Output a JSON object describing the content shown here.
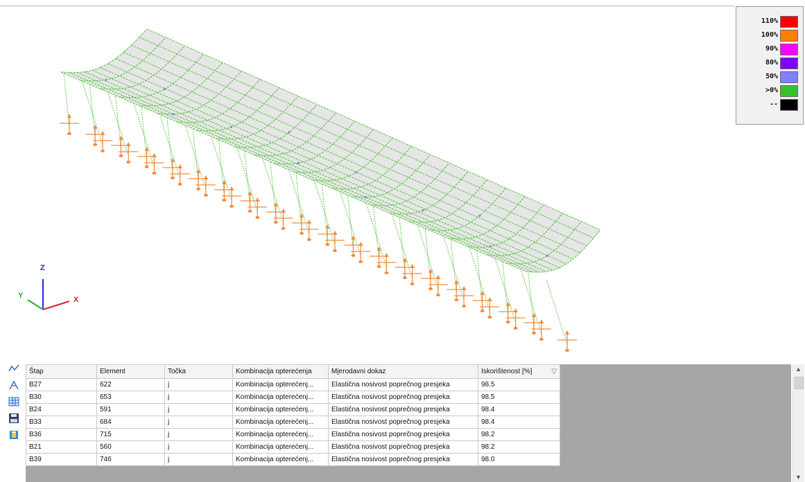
{
  "legend": {
    "entries": [
      {
        "label": "110%",
        "color": "#ff0000"
      },
      {
        "label": "100%",
        "color": "#ff7f00"
      },
      {
        "label": "90%",
        "color": "#ff00ff"
      },
      {
        "label": "80%",
        "color": "#7f00ff"
      },
      {
        "label": "50%",
        "color": "#7f7fff"
      },
      {
        "label": ">0%",
        "color": "#36c12b"
      },
      {
        "label": "--",
        "color": "#000000"
      }
    ]
  },
  "axes": {
    "z": "Z",
    "y": "Y",
    "x": "X"
  },
  "toolbar": [
    "chart-icon",
    "member-icon",
    "table-icon",
    "save-icon",
    "export-icon"
  ],
  "table": {
    "columns": [
      "Štap",
      "Element",
      "Točka",
      "Kombinacija opterećenja",
      "Mjerodavni dokaz",
      "Iskorištenost [%]"
    ],
    "rows": [
      [
        "B27",
        "622",
        "j",
        "Kombinacija opterećenj...",
        "Elastična nosivost poprečnog presjeka",
        "98.5"
      ],
      [
        "B30",
        "653",
        "j",
        "Kombinacija opterećenj...",
        "Elastična nosivost poprečnog presjeka",
        "98.5"
      ],
      [
        "B24",
        "591",
        "j",
        "Kombinacija opterećenj...",
        "Elastična nosivost poprečnog presjeka",
        "98.4"
      ],
      [
        "B33",
        "684",
        "j",
        "Kombinacija opterećenj...",
        "Elastična nosivost poprečnog presjeka",
        "98.4"
      ],
      [
        "B36",
        "715",
        "j",
        "Kombinacija opterećenj...",
        "Elastična nosivost poprečnog presjeka",
        "98.2"
      ],
      [
        "B21",
        "560",
        "j",
        "Kombinacija opterećenj...",
        "Elastična nosivost poprečnog presjeka",
        "98.2"
      ],
      [
        "B39",
        "746",
        "j",
        "Kombinacija opterećenj...",
        "Elastična nosivost poprečnog presjeka",
        "98.0"
      ]
    ]
  },
  "colors": {
    "frame": "#5ec64a",
    "support": "#f28c3c",
    "highlight": "#8a7bff",
    "roof_fill": "#e6e6e6"
  }
}
